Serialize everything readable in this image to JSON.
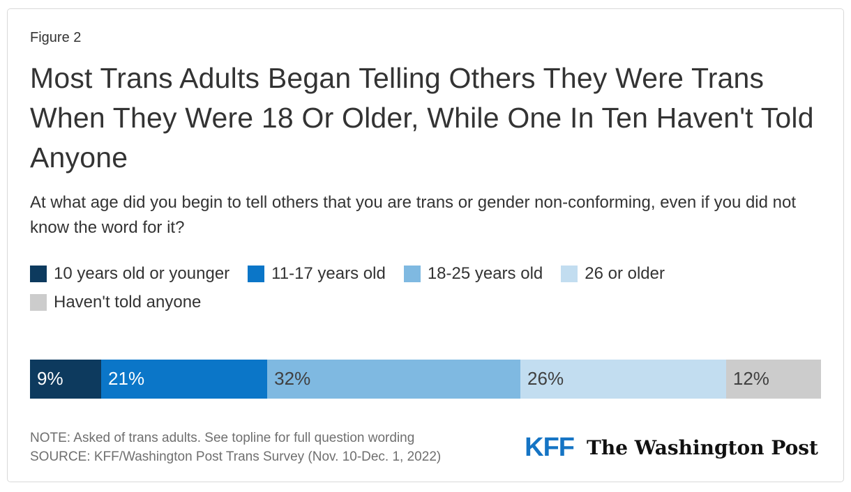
{
  "figure_label": "Figure 2",
  "title": "Most Trans Adults Began Telling Others They Were Trans When They Were 18 Or Older, While One In Ten Haven't Told Anyone",
  "subtitle": "At what age did you begin to tell others that you are trans or gender non-conforming, even if you did not know the word for it?",
  "chart_data": {
    "type": "bar",
    "variant": "stacked-horizontal-single-bar",
    "title": "Most Trans Adults Began Telling Others They Were Trans When They Were 18 Or Older, While One In Ten Haven't Told Anyone",
    "question": "At what age did you begin to tell others that you are trans or gender non-conforming, even if you did not know the word for it?",
    "categories": [
      "10 years old or younger",
      "11-17 years old",
      "18-25 years old",
      "26 or older",
      "Haven't told anyone"
    ],
    "values": [
      9,
      21,
      32,
      26,
      12
    ],
    "unit": "%",
    "xlim": [
      0,
      100
    ],
    "grid": false,
    "legend_position": "top",
    "colors": [
      "#0d3a5e",
      "#0b76c8",
      "#7fb9e1",
      "#c2ddf0",
      "#cccccc"
    ],
    "label_colors": [
      "#ffffff",
      "#ffffff",
      "#404040",
      "#404040",
      "#404040"
    ]
  },
  "footer": {
    "note": "NOTE: Asked of trans adults. See topline for full question wording",
    "source": "SOURCE: KFF/Washington Post Trans Survey (Nov. 10-Dec. 1, 2022)",
    "kff_logo_text": "KFF",
    "wapo_logo_text": "The Washington Post",
    "kff_blue": "#1574c4"
  }
}
